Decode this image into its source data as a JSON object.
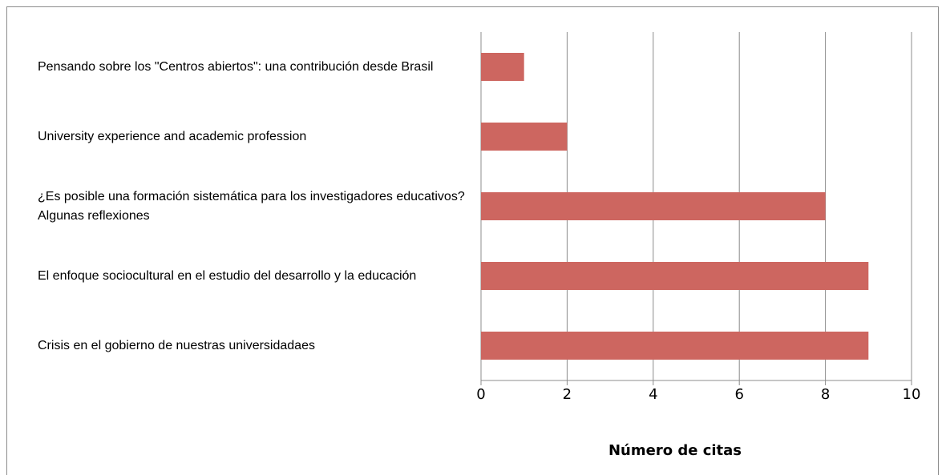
{
  "chart_data": {
    "type": "bar",
    "orientation": "horizontal",
    "categories": [
      "Pensando sobre los \"Centros abiertos\": una contribución desde Brasil",
      "University experience and academic profession",
      "¿Es posible una formación sistemática para los investigadores educativos? Algunas reflexiones",
      "El enfoque sociocultural en el estudio del desarrollo y la educación",
      "Crisis en el gobierno de nuestras universidadaes"
    ],
    "values": [
      1,
      2,
      8,
      9,
      9
    ],
    "color": "#cd6660",
    "xlabel": "Número de citas",
    "xlim": [
      0,
      10
    ],
    "xticks": [
      0,
      2,
      4,
      6,
      8,
      10
    ],
    "grid": true
  }
}
